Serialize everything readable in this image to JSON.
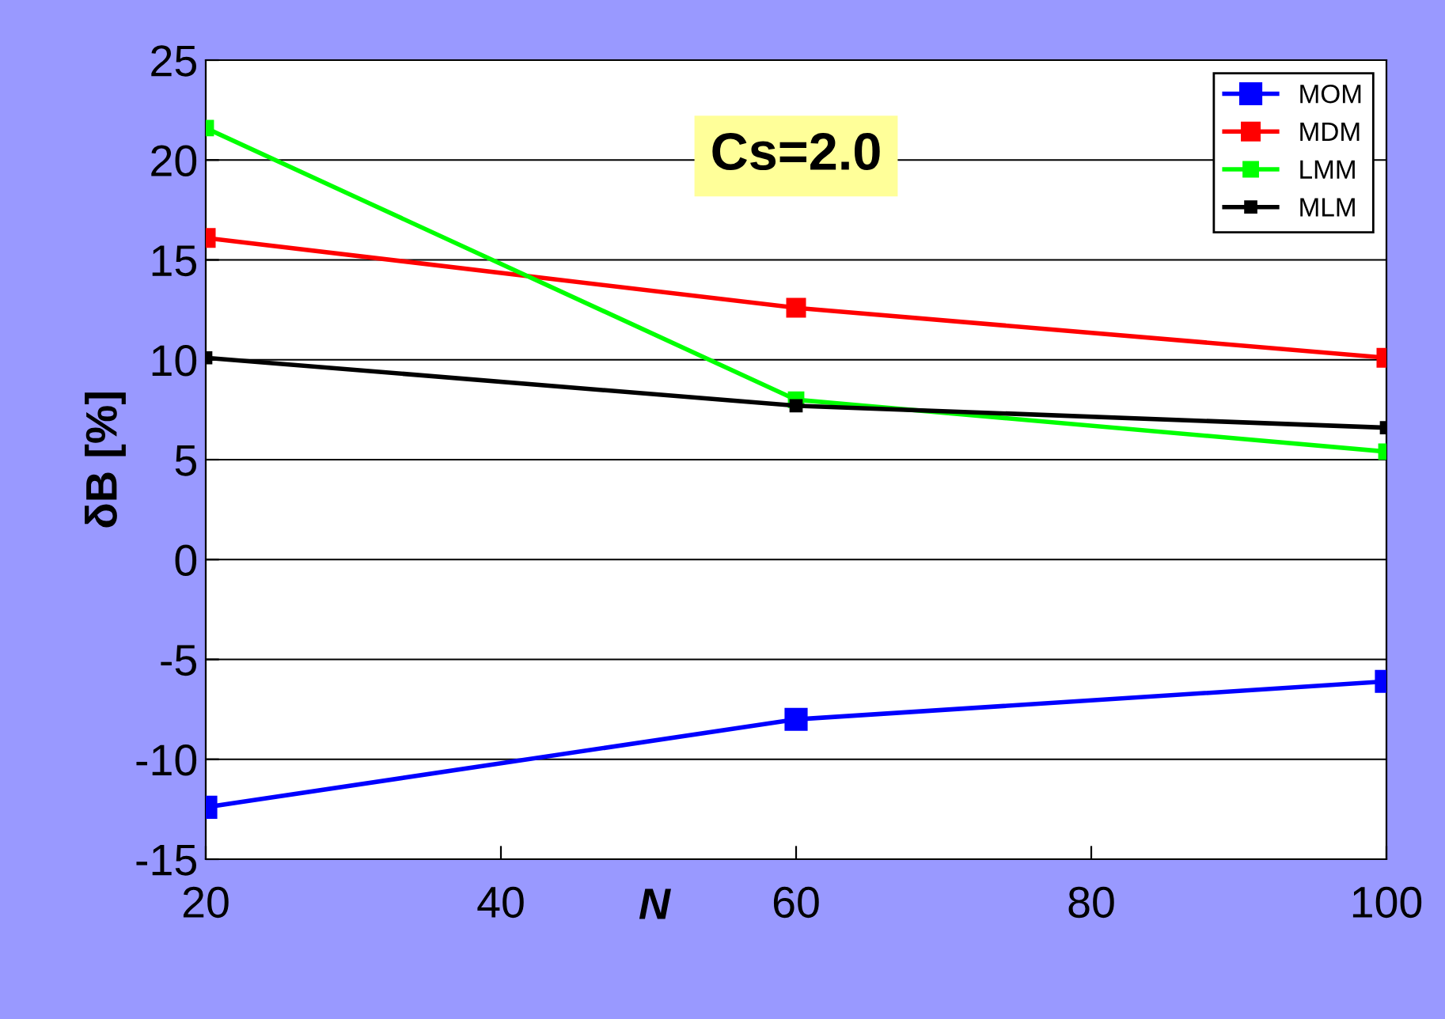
{
  "chart_data": {
    "type": "line",
    "xlabel": "N",
    "ylabel": "δB [%]",
    "x": [
      20,
      60,
      100
    ],
    "series": [
      {
        "name": "MOM",
        "color": "#0000ff",
        "values": [
          -12.4,
          -8.0,
          -6.1
        ]
      },
      {
        "name": "MDM",
        "color": "#ff0000",
        "values": [
          16.1,
          12.6,
          10.1
        ]
      },
      {
        "name": "LMM",
        "color": "#00ff00",
        "values": [
          21.6,
          8.0,
          5.4
        ]
      },
      {
        "name": "MLM",
        "color": "#000000",
        "values": [
          10.1,
          7.7,
          6.6
        ]
      }
    ],
    "xlim": [
      20,
      100
    ],
    "xticks": [
      20,
      40,
      60,
      80,
      100
    ],
    "ylim": [
      -15,
      25
    ],
    "yticks": [
      -15,
      -10,
      -5,
      0,
      5,
      10,
      15,
      20,
      25
    ],
    "annotations": [
      "Cs=2.0"
    ],
    "grid": "y",
    "legend": "top right",
    "marker": "square",
    "line_style": "solid"
  }
}
